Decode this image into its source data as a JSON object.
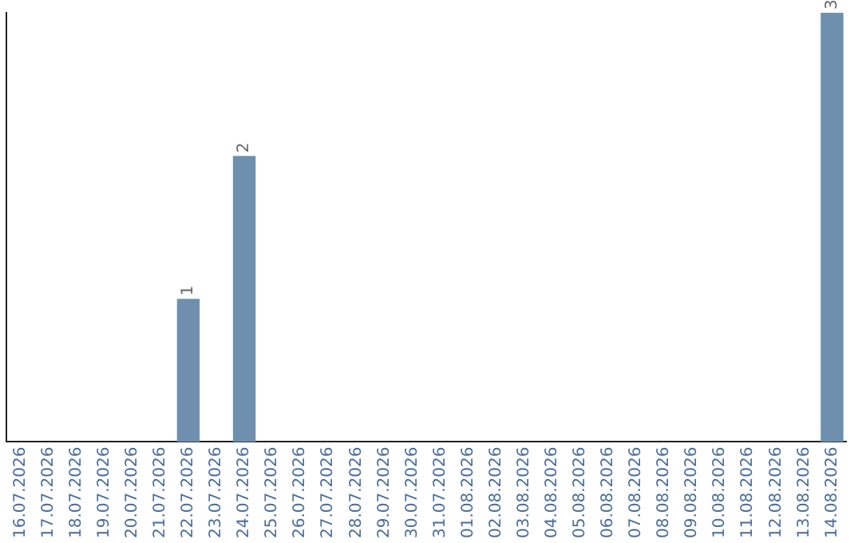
{
  "chart_data": {
    "type": "bar",
    "categories": [
      "16.07.2026",
      "17.07.2026",
      "18.07.2026",
      "19.07.2026",
      "20.07.2026",
      "21.07.2026",
      "22.07.2026",
      "23.07.2026",
      "24.07.2026",
      "25.07.2026",
      "26.07.2026",
      "27.07.2026",
      "28.07.2026",
      "29.07.2026",
      "30.07.2026",
      "31.07.2026",
      "01.08.2026",
      "02.08.2026",
      "03.08.2026",
      "04.08.2026",
      "05.08.2026",
      "06.08.2026",
      "07.08.2026",
      "08.08.2026",
      "09.08.2026",
      "10.08.2026",
      "11.08.2026",
      "12.08.2026",
      "13.08.2026",
      "14.08.2026"
    ],
    "values": [
      0,
      0,
      0,
      0,
      0,
      0,
      1,
      0,
      2,
      0,
      0,
      0,
      0,
      0,
      0,
      0,
      0,
      0,
      0,
      0,
      0,
      0,
      0,
      0,
      0,
      0,
      0,
      0,
      0,
      3
    ],
    "value_labels": [
      null,
      null,
      null,
      null,
      null,
      null,
      "1",
      null,
      "2",
      null,
      null,
      null,
      null,
      null,
      null,
      null,
      null,
      null,
      null,
      null,
      null,
      null,
      null,
      null,
      null,
      null,
      null,
      null,
      null,
      "3"
    ],
    "color": "#6f8faf",
    "tick_labels": "x",
    "grid": false,
    "legend": false
  }
}
